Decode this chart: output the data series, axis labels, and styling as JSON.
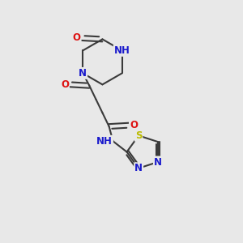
{
  "bg_color": "#e8e8e8",
  "bond_color": "#3a3a3a",
  "bond_width": 1.5,
  "atom_colors": {
    "N": "#1a1acc",
    "O": "#dd1111",
    "S": "#bbbb00",
    "H": "#337777",
    "C": "#3a3a3a"
  },
  "font_size": 8.5,
  "fig_size": [
    3.0,
    3.0
  ],
  "dpi": 100
}
